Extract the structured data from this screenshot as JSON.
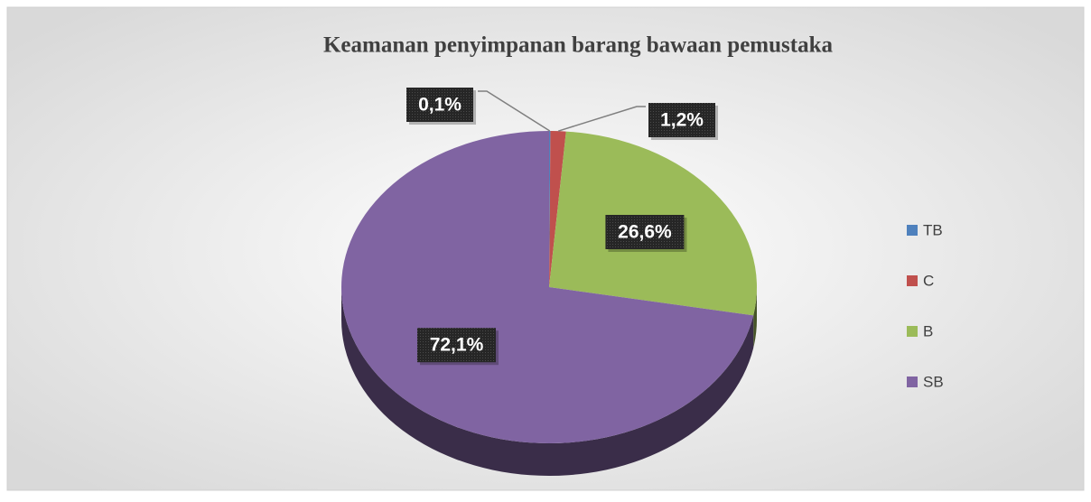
{
  "chart_data": {
    "type": "pie",
    "title": "Keamanan penyimpanan barang bawaan pemustaka",
    "categories": [
      "TB",
      "C",
      "B",
      "SB"
    ],
    "values": [
      0.1,
      1.2,
      26.6,
      72.1
    ],
    "value_labels": [
      "0,1%",
      "1,2%",
      "26,6%",
      "72,1%"
    ],
    "colors": [
      "#4f81bd",
      "#c0504d",
      "#9bbb59",
      "#8064a2"
    ],
    "legend": "right",
    "three_d": true
  }
}
